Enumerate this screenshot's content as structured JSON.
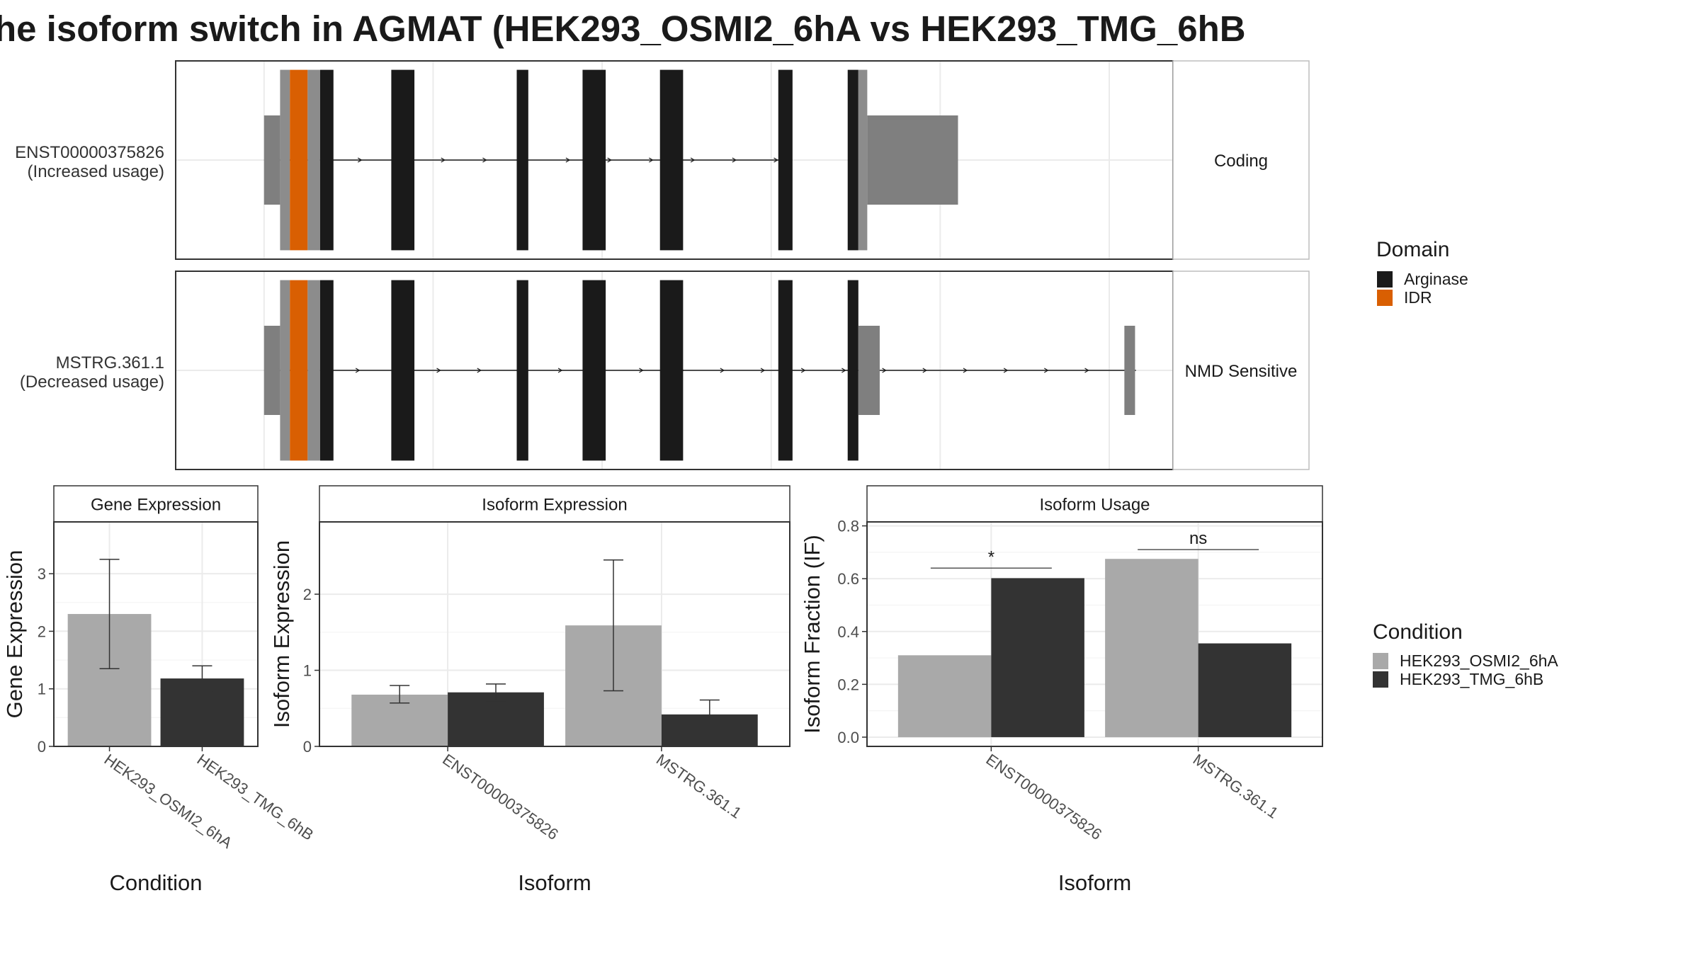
{
  "title": "he isoform switch in AGMAT (HEK293_OSMI2_6hA vs HEK293_TMG_6hB",
  "colors": {
    "arginase": "#1a1a1a",
    "idr": "#d95f02",
    "utr": "#7f7f7f",
    "cds_other": "#8c8c8c",
    "cond_a": "#a9a9a9",
    "cond_b": "#333333"
  },
  "chart_data": [
    {
      "type": "diagram",
      "name": "transcript structure",
      "x_range": [
        0,
        1000
      ],
      "grid_x": [
        50,
        240,
        430,
        620,
        810,
        1000
      ],
      "transcripts": [
        {
          "label_line1": "ENST00000375826",
          "label_line2": "(Increased usage)",
          "class": "Coding",
          "line": [
            50,
            635
          ],
          "exons": [
            {
              "start": 50,
              "end": 68,
              "kind": "utr"
            },
            {
              "start": 68,
              "end": 79,
              "kind": "cds_other"
            },
            {
              "start": 79,
              "end": 99,
              "kind": "idr"
            },
            {
              "start": 99,
              "end": 113,
              "kind": "cds_other"
            },
            {
              "start": 113,
              "end": 128,
              "kind": "arginase"
            },
            {
              "start": 193,
              "end": 219,
              "kind": "arginase"
            },
            {
              "start": 334,
              "end": 347,
              "kind": "arginase"
            },
            {
              "start": 408,
              "end": 434,
              "kind": "arginase"
            },
            {
              "start": 495,
              "end": 521,
              "kind": "arginase"
            },
            {
              "start": 628,
              "end": 644,
              "kind": "arginase"
            },
            {
              "start": 706,
              "end": 718,
              "kind": "arginase"
            },
            {
              "start": 718,
              "end": 728,
              "kind": "cds_other"
            },
            {
              "start": 728,
              "end": 830,
              "kind": "utr"
            }
          ]
        },
        {
          "label_line1": "MSTRG.361.1",
          "label_line2": "(Decreased usage)",
          "class": "NMD Sensitive",
          "line": [
            50,
            1030
          ],
          "exons": [
            {
              "start": 50,
              "end": 68,
              "kind": "utr"
            },
            {
              "start": 68,
              "end": 79,
              "kind": "cds_other"
            },
            {
              "start": 79,
              "end": 99,
              "kind": "idr"
            },
            {
              "start": 99,
              "end": 113,
              "kind": "cds_other"
            },
            {
              "start": 113,
              "end": 128,
              "kind": "arginase"
            },
            {
              "start": 193,
              "end": 219,
              "kind": "arginase"
            },
            {
              "start": 334,
              "end": 347,
              "kind": "arginase"
            },
            {
              "start": 408,
              "end": 434,
              "kind": "arginase"
            },
            {
              "start": 495,
              "end": 521,
              "kind": "arginase"
            },
            {
              "start": 628,
              "end": 644,
              "kind": "arginase"
            },
            {
              "start": 706,
              "end": 718,
              "kind": "arginase"
            },
            {
              "start": 718,
              "end": 742,
              "kind": "utr"
            },
            {
              "start": 1017,
              "end": 1029,
              "kind": "utr"
            }
          ]
        }
      ],
      "legend": {
        "title": "Domain",
        "items": [
          {
            "label": "Arginase",
            "color": "#1a1a1a"
          },
          {
            "label": "IDR",
            "color": "#d95f02"
          }
        ]
      }
    },
    {
      "type": "bar",
      "strip": "Gene Expression",
      "xlabel": "Condition",
      "ylabel": "Gene Expression",
      "ylim": [
        0,
        3.9
      ],
      "yticks": [
        0,
        1,
        2,
        3
      ],
      "categories": [
        "HEK293_OSMI2_6hA",
        "HEK293_TMG_6hB"
      ],
      "values": [
        2.3,
        1.18
      ],
      "err_low": [
        1.35,
        0.95
      ],
      "err_high": [
        3.25,
        1.4
      ],
      "colors": [
        "#a9a9a9",
        "#333333"
      ]
    },
    {
      "type": "bar",
      "strip": "Isoform Expression",
      "xlabel": "Isoform",
      "ylabel": "Isoform Expression",
      "ylim": [
        0,
        2.95
      ],
      "yticks": [
        0,
        1,
        2
      ],
      "categories": [
        "ENST00000375826",
        "MSTRG.361.1"
      ],
      "series": [
        {
          "name": "HEK293_OSMI2_6hA",
          "values": [
            0.68,
            1.59
          ],
          "err_low": [
            0.57,
            0.73
          ],
          "err_high": [
            0.8,
            2.45
          ]
        },
        {
          "name": "HEK293_TMG_6hB",
          "values": [
            0.71,
            0.42
          ],
          "err_low": [
            0.6,
            0.23
          ],
          "err_high": [
            0.82,
            0.61
          ]
        }
      ]
    },
    {
      "type": "bar",
      "strip": "Isoform Usage",
      "xlabel": "Isoform",
      "ylabel": "Isoform Fraction (IF)",
      "ylim": [
        -0.035,
        0.815
      ],
      "yticks": [
        0.0,
        0.2,
        0.4,
        0.6,
        0.8
      ],
      "ytick_labels": [
        "0.0",
        "0.2",
        "0.4",
        "0.6",
        "0.8"
      ],
      "categories": [
        "ENST00000375826",
        "MSTRG.361.1"
      ],
      "series": [
        {
          "name": "HEK293_OSMI2_6hA",
          "values": [
            0.31,
            0.675
          ]
        },
        {
          "name": "HEK293_TMG_6hB",
          "values": [
            0.602,
            0.355
          ]
        }
      ],
      "significance": [
        {
          "category": "ENST00000375826",
          "label": "*",
          "level": 0.64
        },
        {
          "category": "MSTRG.361.1",
          "label": "ns",
          "level": 0.71
        }
      ],
      "legend": {
        "title": "Condition",
        "items": [
          {
            "label": "HEK293_OSMI2_6hA",
            "color": "#a9a9a9"
          },
          {
            "label": "HEK293_TMG_6hB",
            "color": "#333333"
          }
        ]
      }
    }
  ]
}
